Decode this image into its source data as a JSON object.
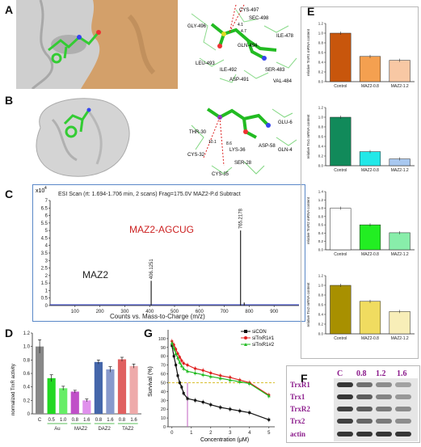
{
  "panels": {
    "A": {
      "label": "A",
      "residues": [
        "CYS-497",
        "SEC-498",
        "GLY-496",
        "ILE-478",
        "GLN-494",
        "LEU-493",
        "ILE-492",
        "SER-483",
        "ASP-491",
        "VAL-484"
      ],
      "distances": [
        "4.1",
        "4.7"
      ]
    },
    "B": {
      "label": "B",
      "residues": [
        "THR-30",
        "GLU-6",
        "GLN-4",
        "ASP-58",
        "CYS-32",
        "LYS-36",
        "SER-28",
        "CYS-35"
      ],
      "distances": [
        "10.1",
        "8.6"
      ]
    },
    "C": {
      "label": "C",
      "multiplier": "x10",
      "multiplier_exp": "4",
      "header": "ESI Scan (rt: 1.694-1.706 min, 2 scans) Frag=175.0V MAZ2-P.d  Subtract",
      "xlabel": "Counts vs. Mass-to-Charge (m/z)",
      "peak_label_1": "MAZ2",
      "peak_label_2": "MAZ2-AGCUG",
      "peak_mz_1": "406.1251",
      "peak_mz_2": "765.2178",
      "yticks": [
        "7",
        "6.5",
        "6",
        "5.5",
        "5",
        "4.5",
        "4",
        "3.5",
        "3",
        "2.5",
        "2",
        "1.5",
        "1",
        "0.5",
        "0"
      ],
      "xticks": [
        "100",
        "200",
        "300",
        "400",
        "500",
        "600",
        "700",
        "800",
        "900"
      ]
    },
    "D": {
      "label": "D",
      "ylabel": "normalized TrxR activity",
      "yticks": [
        "0",
        "0.2",
        "0.4",
        "0.6",
        "0.8",
        "1.0",
        "1.2"
      ],
      "xticks": [
        "C",
        "0.5",
        "1.0",
        "0.8",
        "1.6",
        "0.8",
        "1.6",
        "0.8",
        "1.6"
      ],
      "groups": [
        "Au",
        "MAZ2",
        "DAZ2",
        "TAZ2"
      ]
    },
    "G": {
      "label": "G",
      "ylabel": "Survival (%)",
      "xlabel": "Concentration (μM)",
      "yticks": [
        "0",
        "10",
        "20",
        "30",
        "40",
        "50",
        "60",
        "70",
        "80",
        "90",
        "100"
      ],
      "xticks": [
        "0",
        "1",
        "2",
        "3",
        "4",
        "5"
      ],
      "legend": [
        "siCON",
        "siTrxR1#1",
        "siTrxR1#2"
      ]
    },
    "E": {
      "label": "E",
      "subcharts": [
        {
          "ylabel": "relative TrxR1 mRNA content",
          "yticks": [
            "0.0",
            "0.2",
            "0.4",
            "0.6",
            "0.8",
            "1.0",
            "1.2"
          ]
        },
        {
          "ylabel": "relative Trx1 mRNA content",
          "yticks": [
            "0.0",
            "0.2",
            "0.4",
            "0.6",
            "0.8",
            "1.0",
            "1.2"
          ]
        },
        {
          "ylabel": "relative TrxR2 mRNA content",
          "yticks": [
            "0.0",
            "0.2",
            "0.4",
            "0.6",
            "0.8",
            "1.0",
            "1.2",
            "1.4"
          ]
        },
        {
          "ylabel": "relative Trx2 mRNA content",
          "yticks": [
            "0.0",
            "0.2",
            "0.4",
            "0.6",
            "0.8",
            "1.0",
            "1.2"
          ]
        }
      ],
      "categories": [
        "Control",
        "MAZ2-0.8",
        "MAZ2-1.2"
      ]
    },
    "F": {
      "label": "F",
      "columns": [
        "C",
        "0.8",
        "1.2",
        "1.6"
      ],
      "rows": [
        "TrxR1",
        "Trx1",
        "TrxR2",
        "Trx2",
        "actin"
      ]
    }
  },
  "colors": {
    "grey_surface": "#c9c9c9",
    "orange_surface": "#d9a96b",
    "ligand_green": "#33cc33",
    "ms_red": "#cc2222",
    "band_label": "#8b1a8b"
  },
  "chart_data": [
    {
      "type": "bar",
      "panel": "D",
      "ylabel": "normalized TrxR activity",
      "ylim": [
        0,
        1.2
      ],
      "categories": [
        "C",
        "0.5",
        "1.0",
        "0.8",
        "1.6",
        "0.8",
        "1.6",
        "0.8",
        "1.6"
      ],
      "groups": [
        "Au",
        "MAZ2",
        "DAZ2",
        "TAZ2"
      ],
      "values": [
        1.0,
        0.53,
        0.38,
        0.33,
        0.2,
        0.77,
        0.66,
        0.81,
        0.71
      ],
      "errors": [
        0.1,
        0.05,
        0.03,
        0.02,
        0.02,
        0.03,
        0.04,
        0.03,
        0.03
      ],
      "colors": [
        "#888888",
        "#22d822",
        "#66ee66",
        "#c050c8",
        "#e090ec",
        "#4466aa",
        "#8899cc",
        "#e06060",
        "#eeaaaa"
      ]
    },
    {
      "type": "line",
      "panel": "G",
      "xlabel": "Concentration (μM)",
      "ylabel": "Survival (%)",
      "xlim": [
        -0.2,
        5.3
      ],
      "ylim": [
        0,
        110
      ],
      "series": [
        {
          "name": "siCON",
          "color": "#111111",
          "x": [
            0,
            0.1,
            0.2,
            0.3,
            0.4,
            0.5,
            0.6,
            0.8,
            1.2,
            1.6,
            2,
            2.5,
            3,
            3.5,
            4,
            5
          ],
          "y": [
            92,
            80,
            70,
            58,
            50,
            45,
            38,
            32,
            30,
            28,
            25,
            22,
            20,
            18,
            16,
            8
          ]
        },
        {
          "name": "siTrxR1#1",
          "color": "#e02020",
          "x": [
            0,
            0.1,
            0.2,
            0.3,
            0.4,
            0.5,
            0.6,
            0.8,
            1.2,
            1.6,
            2,
            2.5,
            3,
            3.5,
            4,
            5
          ],
          "y": [
            97,
            93,
            88,
            83,
            79,
            75,
            72,
            70,
            66,
            64,
            61,
            58,
            56,
            53,
            50,
            36
          ]
        },
        {
          "name": "siTrxR1#2",
          "color": "#22bb22",
          "x": [
            0,
            0.1,
            0.2,
            0.3,
            0.4,
            0.5,
            0.6,
            0.8,
            1.2,
            1.6,
            2,
            2.5,
            3,
            3.5,
            4,
            5
          ],
          "y": [
            95,
            89,
            83,
            78,
            73,
            69,
            66,
            63,
            61,
            59,
            57,
            55,
            53,
            51,
            49,
            35
          ]
        }
      ],
      "reference_line": {
        "y": 50,
        "color": "#d8c030"
      },
      "marker_line": {
        "x": 0.8,
        "color": "#c060c0"
      }
    },
    {
      "type": "bar",
      "panel": "E",
      "categories": [
        "Control",
        "MAZ2-0.8",
        "MAZ2-1.2"
      ],
      "series": [
        {
          "ylabel": "relative TrxR1 mRNA content",
          "ylim": [
            0,
            1.2
          ],
          "values": [
            1.0,
            0.52,
            0.44
          ],
          "colors": [
            "#c8560c",
            "#f4a050",
            "#f8c8a4"
          ]
        },
        {
          "ylabel": "relative Trx1 mRNA content",
          "ylim": [
            0,
            1.2
          ],
          "values": [
            1.0,
            0.29,
            0.14
          ],
          "colors": [
            "#118a5a",
            "#22e8e8",
            "#a8c8f0"
          ]
        },
        {
          "ylabel": "relative TrxR2 mRNA content",
          "ylim": [
            0,
            1.4
          ],
          "values": [
            1.0,
            0.6,
            0.41
          ],
          "colors": [
            "#ffffff",
            "#22ee22",
            "#88eeaa"
          ]
        },
        {
          "ylabel": "relative Trx2 mRNA content",
          "ylim": [
            0,
            1.2
          ],
          "values": [
            1.0,
            0.67,
            0.46
          ],
          "colors": [
            "#a89000",
            "#f0dc60",
            "#f8eeb8"
          ]
        }
      ]
    },
    {
      "type": "line",
      "panel": "C",
      "xlabel": "Counts vs. Mass-to-Charge (m/z)",
      "xlim": [
        0,
        1000
      ],
      "ylim": [
        0,
        7
      ],
      "peaks": [
        {
          "mz": 406.1251,
          "intensity": 1.65,
          "label": "MAZ2"
        },
        {
          "mz": 765.2178,
          "intensity": 5.0,
          "label": "MAZ2-AGCUG"
        },
        {
          "mz": 780,
          "intensity": 0.2
        }
      ]
    }
  ]
}
